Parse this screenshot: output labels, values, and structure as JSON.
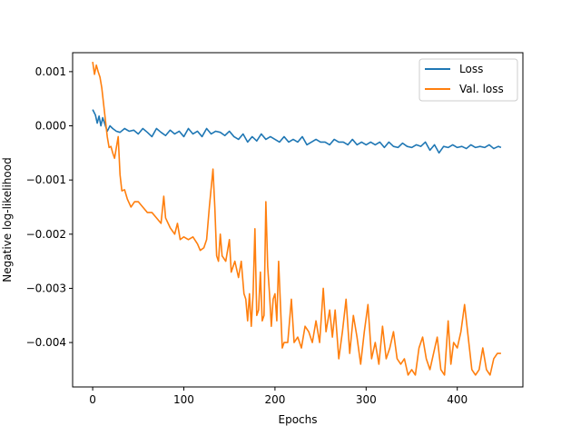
{
  "chart_data": {
    "type": "line",
    "title": "",
    "xlabel": "Epochs",
    "ylabel": "Negative log-likelihood",
    "xlim": [
      -22,
      472
    ],
    "ylim": [
      -0.00482,
      0.00135
    ],
    "xticks": [
      0,
      100,
      200,
      300,
      400
    ],
    "xtick_labels": [
      "0",
      "100",
      "200",
      "300",
      "400"
    ],
    "yticks": [
      0.001,
      0.0,
      -0.001,
      -0.002,
      -0.003,
      -0.004
    ],
    "ytick_labels": [
      "0.001",
      "0.000",
      "−0.001",
      "−0.002",
      "−0.003",
      "−0.004"
    ],
    "grid": false,
    "legend_position": "top-right",
    "series": [
      {
        "name": "Loss",
        "color": "#1f77b4",
        "points": [
          [
            0,
            0.0003
          ],
          [
            3,
            0.0002
          ],
          [
            5,
            5e-05
          ],
          [
            7,
            0.00018
          ],
          [
            9,
            0.0
          ],
          [
            11,
            0.00015
          ],
          [
            14,
            0.0
          ],
          [
            16,
            -0.0001
          ],
          [
            19,
            0.0
          ],
          [
            22,
            -5e-05
          ],
          [
            26,
            -0.0001
          ],
          [
            30,
            -0.00012
          ],
          [
            35,
            -5e-05
          ],
          [
            40,
            -0.0001
          ],
          [
            45,
            -8e-05
          ],
          [
            50,
            -0.00015
          ],
          [
            55,
            -5e-05
          ],
          [
            60,
            -0.00012
          ],
          [
            65,
            -0.0002
          ],
          [
            70,
            -5e-05
          ],
          [
            75,
            -0.00012
          ],
          [
            80,
            -0.00018
          ],
          [
            85,
            -8e-05
          ],
          [
            90,
            -0.00015
          ],
          [
            95,
            -0.0001
          ],
          [
            100,
            -0.0002
          ],
          [
            105,
            -5e-05
          ],
          [
            110,
            -0.00015
          ],
          [
            115,
            -0.0001
          ],
          [
            120,
            -0.0002
          ],
          [
            125,
            -5e-05
          ],
          [
            130,
            -0.00015
          ],
          [
            135,
            -0.0001
          ],
          [
            140,
            -0.00012
          ],
          [
            145,
            -0.00018
          ],
          [
            150,
            -0.0001
          ],
          [
            155,
            -0.0002
          ],
          [
            160,
            -0.00025
          ],
          [
            165,
            -0.00015
          ],
          [
            170,
            -0.0003
          ],
          [
            175,
            -0.0002
          ],
          [
            180,
            -0.00028
          ],
          [
            185,
            -0.00015
          ],
          [
            190,
            -0.00025
          ],
          [
            195,
            -0.0002
          ],
          [
            200,
            -0.00025
          ],
          [
            205,
            -0.0003
          ],
          [
            210,
            -0.0002
          ],
          [
            215,
            -0.0003
          ],
          [
            220,
            -0.00025
          ],
          [
            225,
            -0.0003
          ],
          [
            230,
            -0.0002
          ],
          [
            235,
            -0.00035
          ],
          [
            240,
            -0.0003
          ],
          [
            245,
            -0.00025
          ],
          [
            250,
            -0.0003
          ],
          [
            255,
            -0.0003
          ],
          [
            260,
            -0.00035
          ],
          [
            265,
            -0.00025
          ],
          [
            270,
            -0.0003
          ],
          [
            275,
            -0.0003
          ],
          [
            280,
            -0.00035
          ],
          [
            285,
            -0.00025
          ],
          [
            290,
            -0.00035
          ],
          [
            295,
            -0.0003
          ],
          [
            300,
            -0.00035
          ],
          [
            305,
            -0.0003
          ],
          [
            310,
            -0.00035
          ],
          [
            315,
            -0.0003
          ],
          [
            320,
            -0.0004
          ],
          [
            325,
            -0.0003
          ],
          [
            330,
            -0.00038
          ],
          [
            335,
            -0.0004
          ],
          [
            340,
            -0.00032
          ],
          [
            345,
            -0.00038
          ],
          [
            350,
            -0.0004
          ],
          [
            355,
            -0.00035
          ],
          [
            360,
            -0.00038
          ],
          [
            365,
            -0.0003
          ],
          [
            370,
            -0.00045
          ],
          [
            375,
            -0.00035
          ],
          [
            380,
            -0.0005
          ],
          [
            385,
            -0.00038
          ],
          [
            390,
            -0.0004
          ],
          [
            395,
            -0.00035
          ],
          [
            400,
            -0.0004
          ],
          [
            405,
            -0.00038
          ],
          [
            410,
            -0.00042
          ],
          [
            415,
            -0.00035
          ],
          [
            420,
            -0.0004
          ],
          [
            425,
            -0.00038
          ],
          [
            430,
            -0.0004
          ],
          [
            435,
            -0.00035
          ],
          [
            440,
            -0.00042
          ],
          [
            445,
            -0.00038
          ],
          [
            448,
            -0.0004
          ]
        ]
      },
      {
        "name": "Val. loss",
        "color": "#ff7f0e",
        "points": [
          [
            0,
            0.00118
          ],
          [
            2,
            0.00095
          ],
          [
            4,
            0.00112
          ],
          [
            6,
            0.001
          ],
          [
            8,
            0.0009
          ],
          [
            10,
            0.0007
          ],
          [
            12,
            0.0004
          ],
          [
            14,
            0.0001
          ],
          [
            16,
            -0.0002
          ],
          [
            18,
            -0.0004
          ],
          [
            20,
            -0.00038
          ],
          [
            22,
            -0.0005
          ],
          [
            24,
            -0.0006
          ],
          [
            26,
            -0.0004
          ],
          [
            28,
            -0.0002
          ],
          [
            30,
            -0.0009
          ],
          [
            32,
            -0.0012
          ],
          [
            35,
            -0.00118
          ],
          [
            38,
            -0.00135
          ],
          [
            42,
            -0.0015
          ],
          [
            46,
            -0.0014
          ],
          [
            50,
            -0.0014
          ],
          [
            55,
            -0.0015
          ],
          [
            60,
            -0.0016
          ],
          [
            65,
            -0.0016
          ],
          [
            70,
            -0.0017
          ],
          [
            75,
            -0.0018
          ],
          [
            78,
            -0.0013
          ],
          [
            80,
            -0.0017
          ],
          [
            85,
            -0.00188
          ],
          [
            90,
            -0.002
          ],
          [
            93,
            -0.0018
          ],
          [
            96,
            -0.0021
          ],
          [
            100,
            -0.00205
          ],
          [
            105,
            -0.0021
          ],
          [
            110,
            -0.00205
          ],
          [
            115,
            -0.00218
          ],
          [
            118,
            -0.0023
          ],
          [
            122,
            -0.00225
          ],
          [
            125,
            -0.0021
          ],
          [
            128,
            -0.0015
          ],
          [
            132,
            -0.0008
          ],
          [
            134,
            -0.0015
          ],
          [
            136,
            -0.0024
          ],
          [
            138,
            -0.0025
          ],
          [
            140,
            -0.002
          ],
          [
            142,
            -0.0024
          ],
          [
            146,
            -0.0025
          ],
          [
            150,
            -0.0021
          ],
          [
            152,
            -0.0027
          ],
          [
            156,
            -0.0025
          ],
          [
            160,
            -0.0028
          ],
          [
            163,
            -0.0025
          ],
          [
            166,
            -0.0031
          ],
          [
            168,
            -0.0032
          ],
          [
            170,
            -0.0036
          ],
          [
            172,
            -0.0031
          ],
          [
            174,
            -0.0037
          ],
          [
            176,
            -0.0031
          ],
          [
            178,
            -0.0019
          ],
          [
            180,
            -0.0035
          ],
          [
            182,
            -0.0034
          ],
          [
            184,
            -0.0027
          ],
          [
            186,
            -0.0036
          ],
          [
            188,
            -0.0035
          ],
          [
            190,
            -0.0014
          ],
          [
            192,
            -0.0026
          ],
          [
            194,
            -0.0031
          ],
          [
            196,
            -0.0037
          ],
          [
            198,
            -0.0032
          ],
          [
            200,
            -0.0031
          ],
          [
            202,
            -0.0036
          ],
          [
            204,
            -0.0025
          ],
          [
            206,
            -0.0033
          ],
          [
            208,
            -0.0041
          ],
          [
            210,
            -0.004
          ],
          [
            214,
            -0.004
          ],
          [
            218,
            -0.0032
          ],
          [
            221,
            -0.004
          ],
          [
            225,
            -0.0039
          ],
          [
            229,
            -0.0041
          ],
          [
            233,
            -0.0037
          ],
          [
            237,
            -0.0038
          ],
          [
            241,
            -0.004
          ],
          [
            245,
            -0.0036
          ],
          [
            249,
            -0.004
          ],
          [
            253,
            -0.003
          ],
          [
            256,
            -0.0038
          ],
          [
            260,
            -0.0034
          ],
          [
            263,
            -0.0039
          ],
          [
            266,
            -0.0034
          ],
          [
            270,
            -0.0043
          ],
          [
            274,
            -0.0038
          ],
          [
            278,
            -0.0032
          ],
          [
            282,
            -0.0042
          ],
          [
            286,
            -0.0035
          ],
          [
            290,
            -0.0039
          ],
          [
            294,
            -0.0044
          ],
          [
            298,
            -0.0038
          ],
          [
            302,
            -0.0033
          ],
          [
            306,
            -0.0043
          ],
          [
            310,
            -0.004
          ],
          [
            314,
            -0.0044
          ],
          [
            318,
            -0.0037
          ],
          [
            322,
            -0.0043
          ],
          [
            326,
            -0.0041
          ],
          [
            330,
            -0.0038
          ],
          [
            334,
            -0.0043
          ],
          [
            338,
            -0.0044
          ],
          [
            342,
            -0.0043
          ],
          [
            346,
            -0.0046
          ],
          [
            350,
            -0.0045
          ],
          [
            354,
            -0.0046
          ],
          [
            358,
            -0.0041
          ],
          [
            362,
            -0.0039
          ],
          [
            366,
            -0.0043
          ],
          [
            370,
            -0.0045
          ],
          [
            374,
            -0.0042
          ],
          [
            378,
            -0.0039
          ],
          [
            382,
            -0.0045
          ],
          [
            386,
            -0.0046
          ],
          [
            390,
            -0.0036
          ],
          [
            393,
            -0.0044
          ],
          [
            396,
            -0.004
          ],
          [
            400,
            -0.0041
          ],
          [
            404,
            -0.0038
          ],
          [
            408,
            -0.0033
          ],
          [
            412,
            -0.0039
          ],
          [
            416,
            -0.0045
          ],
          [
            420,
            -0.0046
          ],
          [
            424,
            -0.0045
          ],
          [
            428,
            -0.0041
          ],
          [
            432,
            -0.0045
          ],
          [
            436,
            -0.0046
          ],
          [
            440,
            -0.0043
          ],
          [
            444,
            -0.0042
          ],
          [
            448,
            -0.0042
          ]
        ]
      }
    ]
  }
}
